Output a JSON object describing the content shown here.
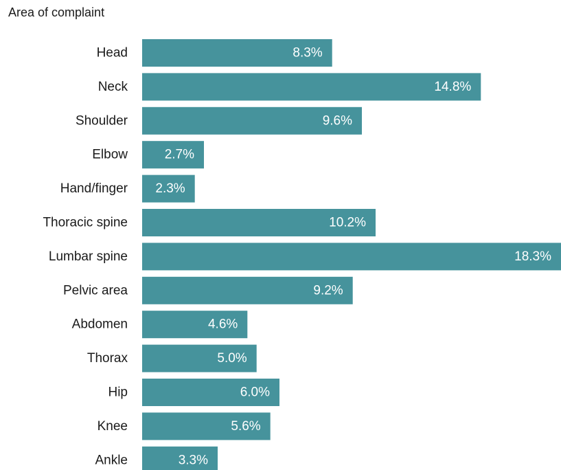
{
  "chart_data": {
    "type": "bar",
    "orientation": "horizontal",
    "title": "Area of complaint",
    "xlabel": "",
    "ylabel": "",
    "categories": [
      "Head",
      "Neck",
      "Shoulder",
      "Elbow",
      "Hand/finger",
      "Thoracic spine",
      "Lumbar spine",
      "Pelvic area",
      "Abdomen",
      "Thorax",
      "Hip",
      "Knee",
      "Ankle"
    ],
    "values": [
      8.3,
      14.8,
      9.6,
      2.7,
      2.3,
      10.2,
      18.3,
      9.2,
      4.6,
      5.0,
      6.0,
      5.6,
      3.3
    ],
    "value_labels": [
      "8.3%",
      "14.8%",
      "9.6%",
      "2.7%",
      "2.3%",
      "10.2%",
      "18.3%",
      "9.2%",
      "4.6%",
      "5.0%",
      "6.0%",
      "5.6%",
      "3.3%"
    ],
    "xlim": [
      0,
      18.3
    ],
    "grid": false,
    "bar_color": "#46939c",
    "label_color": "#ffffff"
  }
}
